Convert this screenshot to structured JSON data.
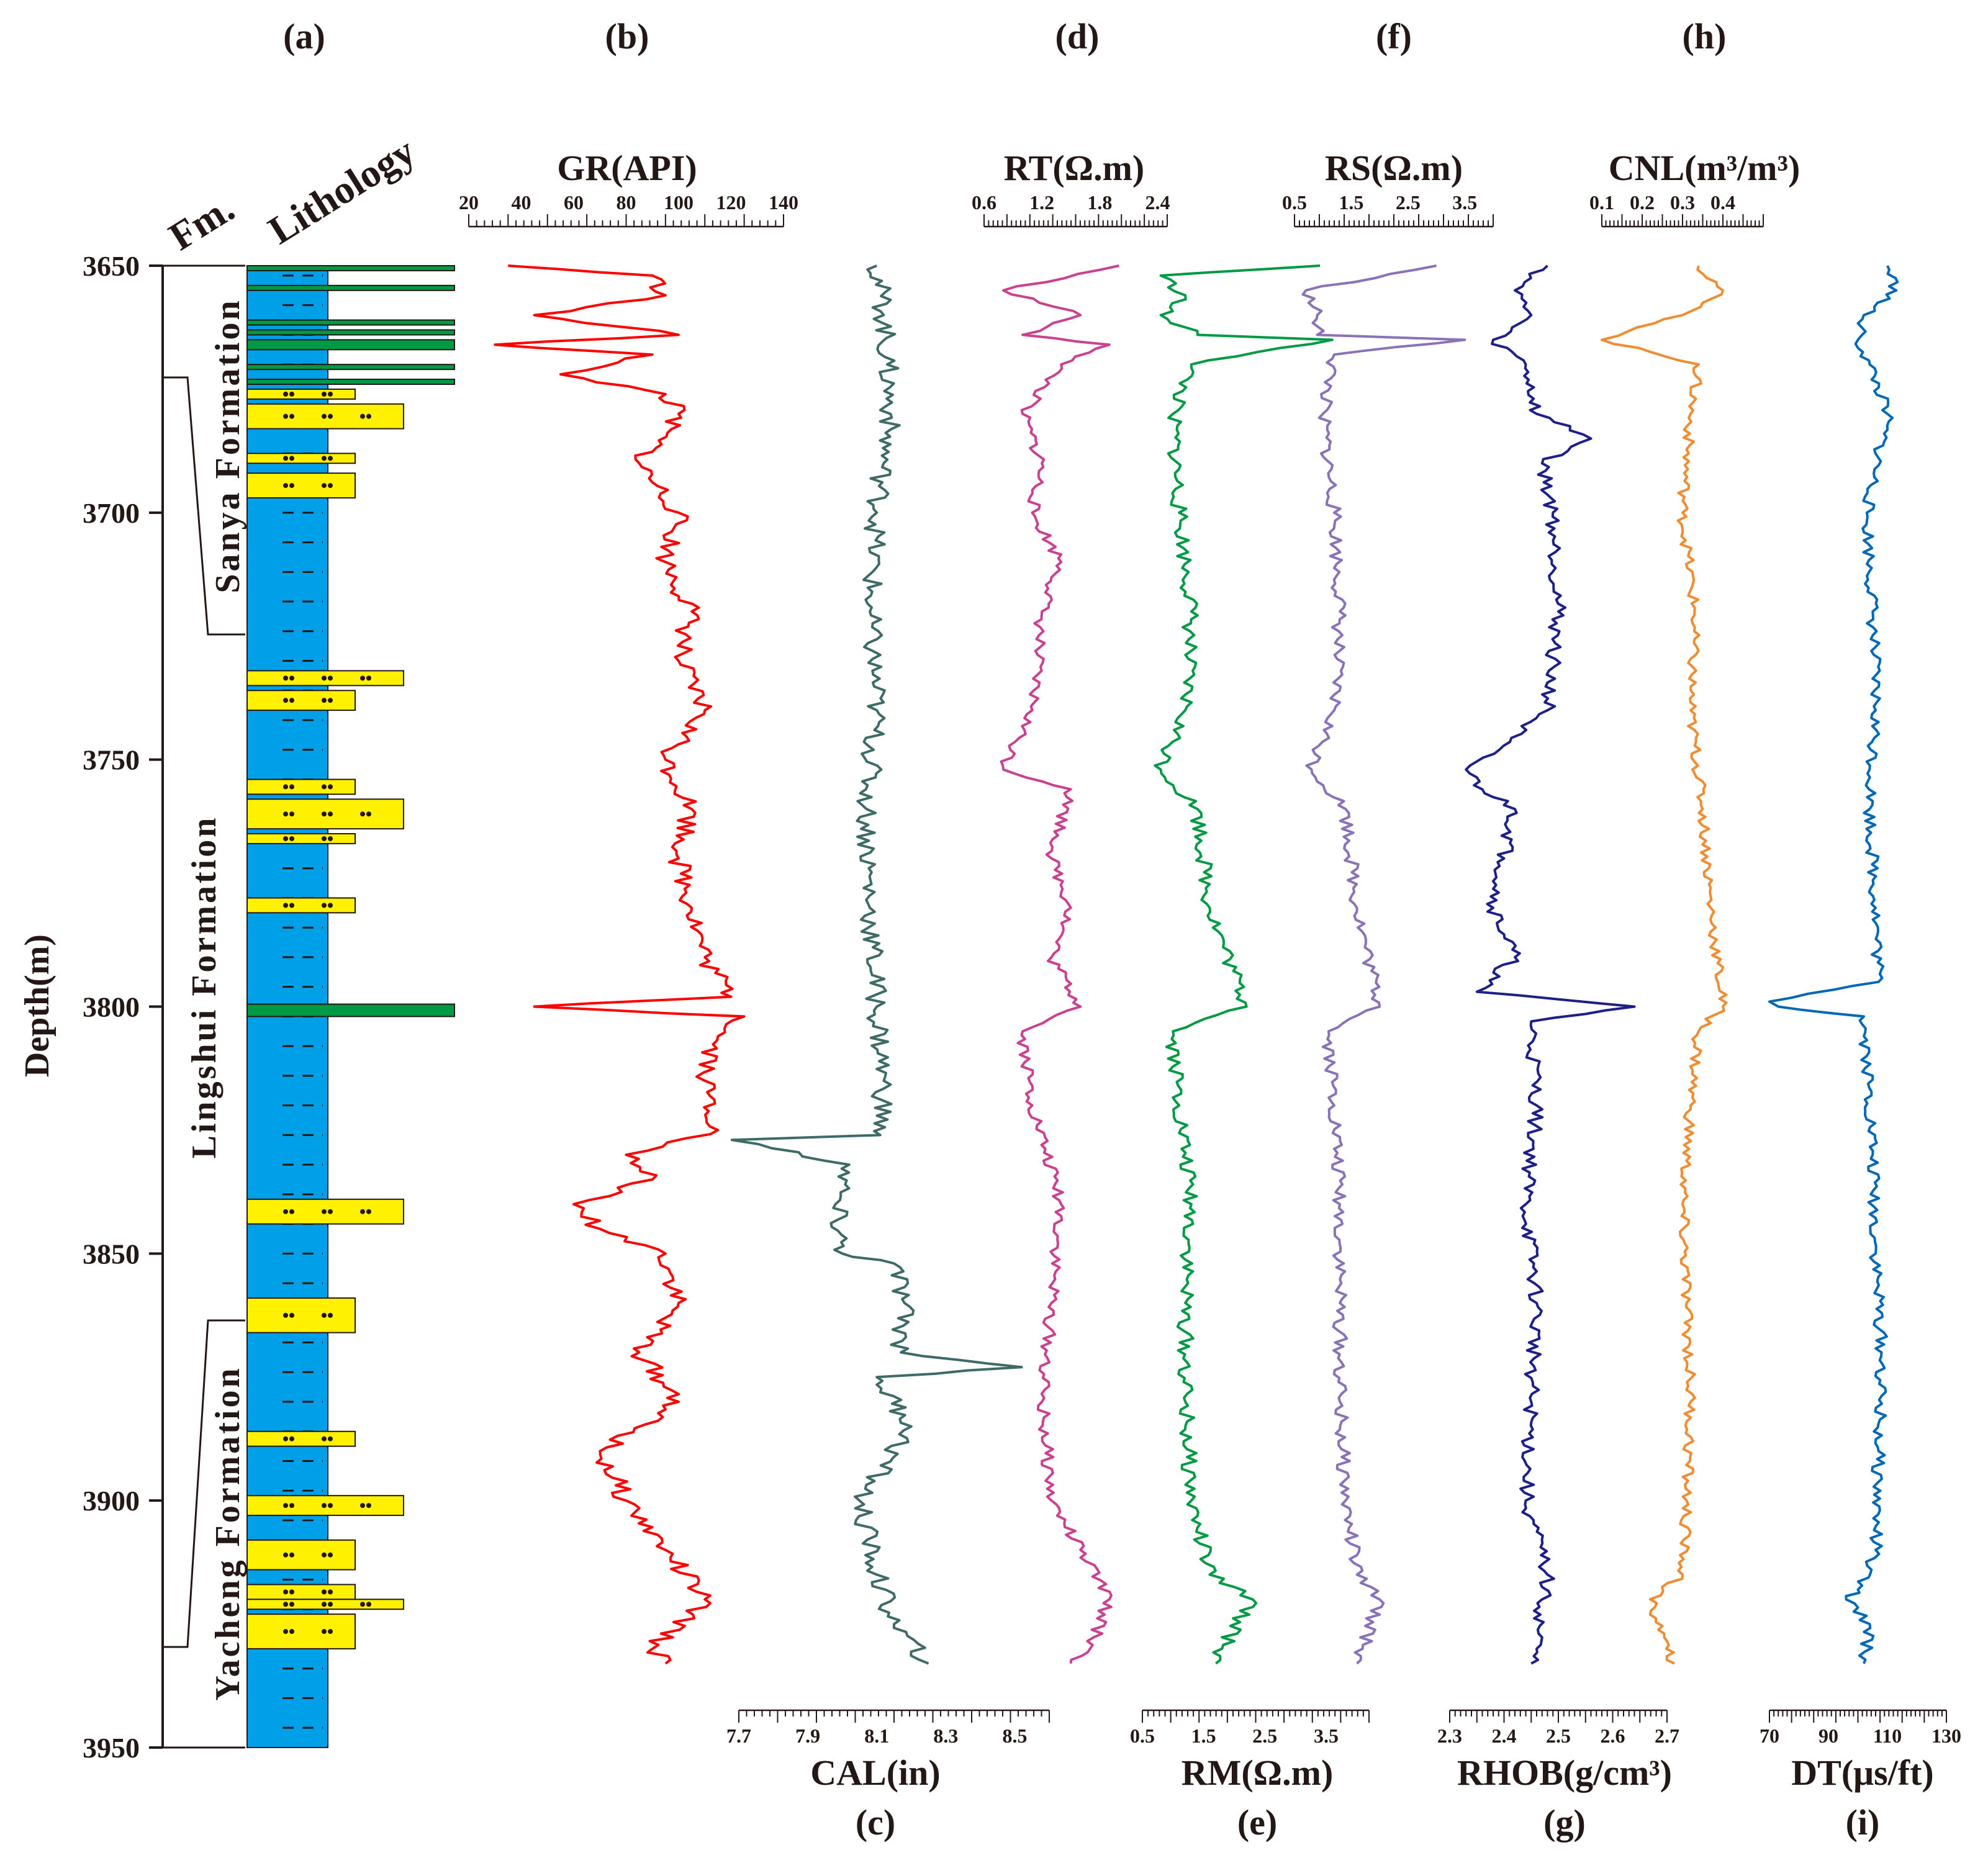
{
  "panel_letters": [
    "(a)",
    "(b)",
    "(c)",
    "(d)",
    "(e)",
    "(f)",
    "(g)",
    "(h)",
    "(i)"
  ],
  "depth_axis": {
    "label": "Depth(m)",
    "ticks": [
      "3650",
      "3700",
      "3750",
      "3800",
      "3850",
      "3900",
      "3950"
    ]
  },
  "column_headers": {
    "formation": "Fm.",
    "lithology": "Lithology"
  },
  "formations": [
    "Sanya Formation",
    "Lingshui Formation",
    "Yacheng Formation"
  ],
  "colors": {
    "mudstone": "#00a0e9",
    "sandstone": "#fff100",
    "coal": "#009944",
    "GR": "#ff0000",
    "CAL": "#3e6b68",
    "RT": "#c9418f",
    "RM": "#009944",
    "RS": "#8a72b8",
    "RHOB": "#1d2088",
    "CNL": "#f08c32",
    "DT": "#0068b7"
  },
  "chart_data": [
    {
      "type": "line",
      "title": "Lithology column",
      "y_range_m": [
        3650,
        3950
      ],
      "coal_seams_m": [
        [
          3650,
          3651
        ],
        [
          3654,
          3655
        ],
        [
          3661,
          3662
        ],
        [
          3663,
          3664
        ],
        [
          3665,
          3667
        ],
        [
          3670,
          3671
        ],
        [
          3673,
          3674
        ],
        [
          3799.5,
          3802
        ]
      ],
      "sandstone_layers_m": [
        [
          3675,
          3677
        ],
        [
          3678,
          3683
        ],
        [
          3688,
          3690
        ],
        [
          3692,
          3697
        ],
        [
          3732,
          3735
        ],
        [
          3736,
          3740
        ],
        [
          3754,
          3757
        ],
        [
          3758,
          3764
        ],
        [
          3765,
          3767
        ],
        [
          3778,
          3781
        ],
        [
          3839,
          3844
        ],
        [
          3859,
          3866
        ],
        [
          3886,
          3889
        ],
        [
          3899,
          3903
        ],
        [
          3908,
          3914
        ],
        [
          3917,
          3920
        ],
        [
          3920,
          3922
        ],
        [
          3923,
          3930
        ]
      ]
    },
    {
      "type": "line",
      "name": "GR",
      "title": "GR(API)",
      "xlim": [
        20,
        140
      ],
      "tick_labels": [
        "20",
        "40",
        "60",
        "80",
        "100",
        "120",
        "140"
      ],
      "axis_position": "top",
      "depth_m": [
        3650,
        3652,
        3656,
        3660,
        3664,
        3666,
        3668,
        3672,
        3676,
        3680,
        3690,
        3700,
        3710,
        3720,
        3730,
        3740,
        3750,
        3760,
        3770,
        3780,
        3790,
        3798,
        3800,
        3802,
        3806,
        3815,
        3825,
        3830,
        3835,
        3840,
        3845,
        3850,
        3860,
        3870,
        3880,
        3890,
        3900,
        3910,
        3920,
        3930,
        3933
      ],
      "values": [
        35,
        90,
        95,
        45,
        100,
        30,
        90,
        55,
        95,
        100,
        85,
        100,
        95,
        105,
        100,
        110,
        95,
        105,
        100,
        105,
        110,
        120,
        45,
        125,
        115,
        110,
        115,
        80,
        90,
        60,
        70,
        95,
        100,
        85,
        100,
        70,
        80,
        95,
        110,
        90,
        95
      ]
    },
    {
      "type": "line",
      "name": "CAL",
      "title": "CAL(in)",
      "xlim": [
        7.7,
        8.6
      ],
      "tick_labels": [
        "7.7",
        "7.9",
        "8.1",
        "8.3",
        "8.5"
      ],
      "axis_position": "bottom",
      "depth_m": [
        3650,
        3660,
        3670,
        3680,
        3690,
        3700,
        3720,
        3740,
        3760,
        3780,
        3800,
        3815,
        3826,
        3827,
        3832,
        3840,
        3850,
        3852,
        3860,
        3870,
        3873,
        3875,
        3885,
        3900,
        3915,
        3925,
        3933
      ],
      "values": [
        8.1,
        8.12,
        8.13,
        8.14,
        8.12,
        8.1,
        8.08,
        8.1,
        8.07,
        8.08,
        8.1,
        8.12,
        8.11,
        7.68,
        8.02,
        7.98,
        8.0,
        8.15,
        8.18,
        8.17,
        8.52,
        8.1,
        8.2,
        8.05,
        8.1,
        8.15,
        8.25
      ]
    },
    {
      "type": "line",
      "name": "RT",
      "title": "RT(Ω.m)",
      "xlim": [
        0.6,
        2.5
      ],
      "tick_labels": [
        "0.6",
        "1.2",
        "1.8",
        "2.4"
      ],
      "axis_position": "top",
      "depth_m": [
        3650,
        3655,
        3660,
        3664,
        3666,
        3670,
        3680,
        3690,
        3700,
        3710,
        3720,
        3740,
        3752,
        3756,
        3770,
        3780,
        3790,
        3800,
        3805,
        3820,
        3840,
        3860,
        3880,
        3900,
        3910,
        3920,
        3930,
        3933
      ],
      "values": [
        2.0,
        0.8,
        1.6,
        1.0,
        1.9,
        1.4,
        1.0,
        1.2,
        1.1,
        1.4,
        1.2,
        1.1,
        0.8,
        1.5,
        1.3,
        1.5,
        1.3,
        1.6,
        1.0,
        1.1,
        1.4,
        1.3,
        1.2,
        1.3,
        1.6,
        1.9,
        1.7,
        1.5
      ]
    },
    {
      "type": "line",
      "name": "RM",
      "title": "RM(Ω.m)",
      "xlim": [
        0.5,
        4.2
      ],
      "tick_labels": [
        "0.5",
        "1.5",
        "2.5",
        "3.5"
      ],
      "axis_position": "bottom",
      "depth_m": [
        3650,
        3652,
        3656,
        3660,
        3664,
        3665,
        3670,
        3680,
        3700,
        3720,
        3740,
        3752,
        3760,
        3780,
        3800,
        3805,
        3820,
        3840,
        3860,
        3880,
        3900,
        3915,
        3920,
        3930,
        3933
      ],
      "values": [
        3.4,
        0.8,
        1.2,
        0.8,
        1.4,
        3.6,
        1.3,
        1.0,
        1.1,
        1.3,
        1.2,
        0.8,
        1.4,
        1.6,
        2.2,
        1.0,
        1.1,
        1.3,
        1.2,
        1.2,
        1.3,
        1.6,
        2.3,
        1.8,
        1.7
      ]
    },
    {
      "type": "line",
      "name": "RS",
      "title": "RS(Ω.m)",
      "xlim": [
        0.5,
        4.0
      ],
      "tick_labels": [
        "0.5",
        "1.5",
        "2.5",
        "3.5"
      ],
      "axis_position": "top",
      "depth_m": [
        3650,
        3655,
        3660,
        3664,
        3665,
        3668,
        3680,
        3700,
        3720,
        3740,
        3752,
        3760,
        3780,
        3800,
        3805,
        3820,
        3840,
        3860,
        3880,
        3900,
        3915,
        3920,
        3930,
        3933
      ],
      "values": [
        3.0,
        0.7,
        0.9,
        0.9,
        3.5,
        1.2,
        1.0,
        1.2,
        1.3,
        1.2,
        0.8,
        1.4,
        1.6,
        2.0,
        1.1,
        1.2,
        1.3,
        1.3,
        1.3,
        1.4,
        1.6,
        2.0,
        1.7,
        1.6
      ]
    },
    {
      "type": "line",
      "name": "RHOB",
      "title": "RHOB(g/cm³)",
      "xlim": [
        2.3,
        2.7
      ],
      "tick_labels": [
        "2.3",
        "2.4",
        "2.5",
        "2.6",
        "2.7"
      ],
      "axis_position": "bottom",
      "depth_m": [
        3650,
        3655,
        3660,
        3665,
        3670,
        3680,
        3685,
        3690,
        3700,
        3720,
        3740,
        3752,
        3756,
        3760,
        3770,
        3780,
        3790,
        3797,
        3800,
        3803,
        3820,
        3840,
        3860,
        3880,
        3900,
        3915,
        3920,
        3930,
        3933
      ],
      "values": [
        2.48,
        2.42,
        2.45,
        2.38,
        2.44,
        2.46,
        2.56,
        2.47,
        2.49,
        2.5,
        2.48,
        2.33,
        2.36,
        2.42,
        2.4,
        2.38,
        2.42,
        2.35,
        2.64,
        2.45,
        2.46,
        2.44,
        2.46,
        2.45,
        2.44,
        2.48,
        2.47,
        2.46,
        2.45
      ]
    },
    {
      "type": "line",
      "name": "CNL",
      "title": "CNL(m³/m³)",
      "xlim": [
        0.1,
        0.5
      ],
      "tick_labels": [
        "0.1",
        "0.2",
        "0.3",
        "0.4"
      ],
      "axis_position": "top",
      "depth_m": [
        3650,
        3655,
        3660,
        3665,
        3670,
        3680,
        3700,
        3720,
        3740,
        3760,
        3780,
        3800,
        3805,
        3820,
        3840,
        3860,
        3880,
        3900,
        3915,
        3920,
        3930,
        3933
      ],
      "values": [
        0.34,
        0.4,
        0.3,
        0.1,
        0.34,
        0.32,
        0.3,
        0.33,
        0.32,
        0.35,
        0.37,
        0.4,
        0.34,
        0.32,
        0.3,
        0.31,
        0.32,
        0.31,
        0.3,
        0.22,
        0.26,
        0.28
      ]
    },
    {
      "type": "line",
      "name": "DT",
      "title": "DT(μs/ft)",
      "xlim": [
        70,
        130
      ],
      "tick_labels": [
        "70",
        "90",
        "110",
        "130"
      ],
      "axis_position": "bottom",
      "depth_m": [
        3650,
        3655,
        3660,
        3665,
        3670,
        3680,
        3700,
        3720,
        3740,
        3760,
        3780,
        3795,
        3799,
        3800,
        3802,
        3810,
        3830,
        3850,
        3870,
        3890,
        3910,
        3918,
        3920,
        3925,
        3933
      ],
      "values": [
        110,
        113,
        102,
        100,
        104,
        110,
        103,
        105,
        106,
        104,
        106,
        107,
        70,
        73,
        102,
        103,
        105,
        106,
        108,
        107,
        106,
        100,
        96,
        104,
        102
      ]
    }
  ]
}
